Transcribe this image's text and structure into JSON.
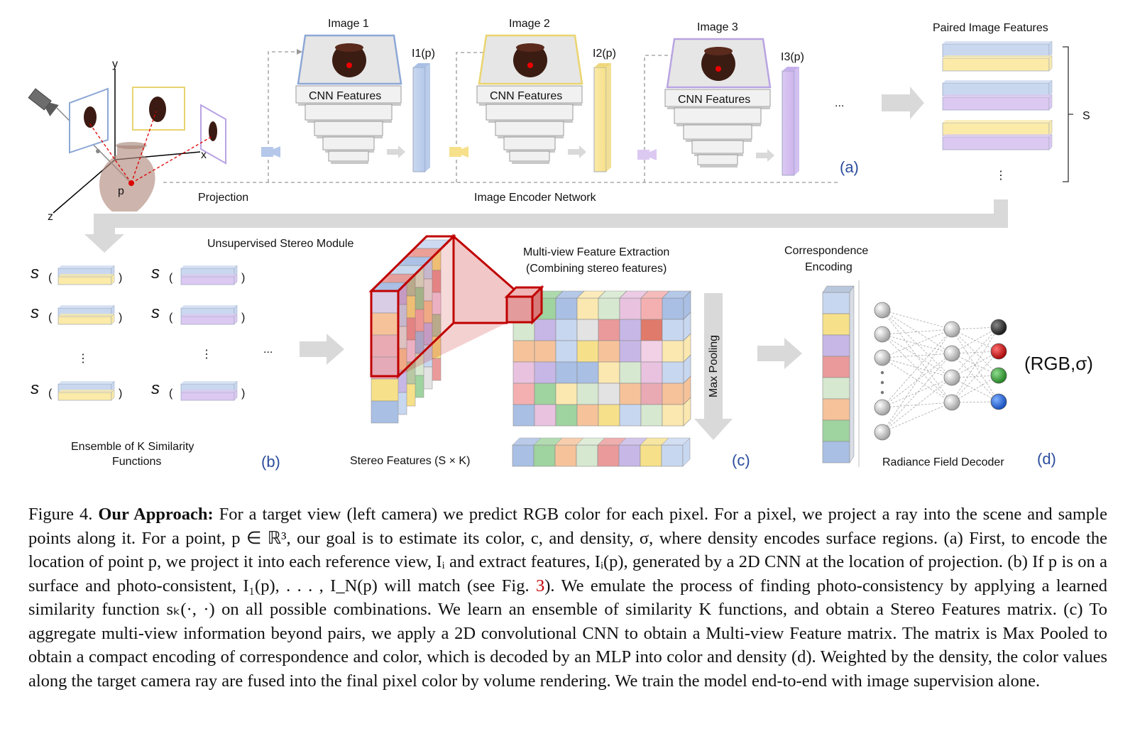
{
  "figure": {
    "image_labels": [
      "Image 1",
      "Image 2",
      "Image 3"
    ],
    "feature_labels": [
      "I1(p)",
      "I2(p)",
      "I3(p)"
    ],
    "cnn_label": "CNN Features",
    "paired_title": "Paired Image Features",
    "s_label": "S",
    "part_a": "(a)",
    "part_b": "(b)",
    "part_c": "(c)",
    "part_d": "(d)",
    "projection_label": "Projection",
    "encoder_label": "Image Encoder Network",
    "stereo_module_label": "Unsupervised Stereo Module",
    "sim_labels": [
      "s1",
      "s2",
      "sK"
    ],
    "ensemble_line1": "Ensemble of K Similarity",
    "ensemble_line2": "Functions",
    "stereo_features_label": "Stereo Features (S × K)",
    "multiview_line1": "Multi-view Feature Extraction",
    "multiview_line2": "(Combining stereo features)",
    "maxpool_label": "Max Pooling",
    "corr_line1": "Correspondence",
    "corr_line2": "Encoding",
    "decoder_label": "Radiance Field Decoder",
    "output_label": "(RGB,σ)",
    "axis_x": "x",
    "axis_y": "y",
    "axis_z": "z",
    "point_p": "p",
    "ellipsis": "...",
    "colors": {
      "blue": "#c9d8ef",
      "yellow": "#fbeaa8",
      "purple": "#dcc9f2",
      "red": "#c00000",
      "arrow": "#d9d9d9"
    }
  },
  "caption": {
    "fig_no": "Figure 4.",
    "title": "Our Approach:",
    "body": "For a target view (left camera) we predict RGB color for each pixel. For a pixel, we project a ray into the scene and sample points along it. For a point, p ∈ ℝ³, our goal is to estimate its color, c, and density, σ, where density encodes surface regions. (a) First, to encode the location of point p, we project it into each reference view, Iᵢ and extract features, Iᵢ(p), generated by a 2D CNN at the location of projection. (b) If p is on a surface and photo-consistent, I₁(p), . . . , I_N(p) will match (see Fig.",
    "ref": "3",
    "body2": "). We emulate the process of finding photo-consistency by applying a learned similarity function sₖ(·, ·) on all possible combinations. We learn an ensemble of similarity K functions, and obtain a Stereo Features matrix. (c) To aggregate multi-view information beyond pairs, we apply a 2D convolutional CNN to obtain a Multi-view Feature matrix. The matrix is Max Pooled to obtain a compact encoding of correspondence and color, which is decoded by an MLP into color and density (d). Weighted by the density, the color values along the target camera ray are fused into the final pixel color by volume rendering. We train the model end-to-end with image supervision alone."
  }
}
